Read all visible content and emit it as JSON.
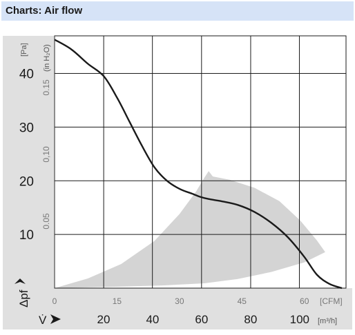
{
  "header": {
    "title": "Charts: Air flow"
  },
  "chart_data": {
    "type": "line",
    "title": "Charts: Air flow",
    "y_symbol": "Δpf",
    "x_symbol": "V̇",
    "y_units": {
      "pa": "[Pa]",
      "inh2o": "(in H₂O)"
    },
    "x_units": {
      "cfm": "[CFM]",
      "m3h": "[m³/h]"
    },
    "xlim_cfm": [
      0,
      70
    ],
    "ylim_pa": [
      0,
      47
    ],
    "grid": true,
    "y_ticks_pa": [
      10,
      20,
      30,
      40
    ],
    "y_ticks_inh2o": [
      "0.05",
      "0,10",
      "0.15"
    ],
    "y_ticks_inh2o_values": [
      0.05,
      0.1,
      0.15
    ],
    "x_ticks_cfm": [
      0,
      15,
      30,
      45,
      60
    ],
    "x_ticks_m3h": [
      20,
      40,
      60,
      80,
      100
    ],
    "grid_x_cfm": [
      11.8,
      23.5,
      35.3,
      47.1,
      58.8,
      70
    ],
    "grid_y_pa": [
      10,
      20,
      30,
      40
    ],
    "series": [
      {
        "x": [
          0,
          4,
          8,
          11.8,
          15,
          18,
          21,
          24,
          27,
          30,
          33,
          35,
          37,
          40,
          44,
          48,
          52,
          56,
          60,
          63,
          66,
          69
        ],
        "y": [
          46.3,
          44.5,
          41.8,
          39.5,
          35.5,
          31,
          26.5,
          22.5,
          20,
          18.5,
          17.6,
          17,
          16.6,
          16.2,
          15.5,
          14.2,
          12.2,
          9.5,
          5.8,
          2.5,
          0.8,
          0
        ]
      }
    ],
    "operating_region": {
      "x": [
        0,
        8,
        16,
        24,
        30,
        34,
        36,
        37,
        38,
        42,
        48,
        54,
        59,
        63,
        65,
        60,
        52,
        44,
        36,
        26,
        16,
        6,
        0
      ],
      "y": [
        0,
        1.8,
        4.5,
        8.8,
        13.8,
        18,
        20.6,
        21.8,
        20.8,
        20.2,
        18.7,
        16.2,
        12.6,
        8.9,
        6.7,
        4.8,
        3,
        1.7,
        0.9,
        0.5,
        0.3,
        0.1,
        0
      ]
    },
    "colors": {
      "curve": "#1a1a1a",
      "region": "#d4d4d4",
      "grid": "#1a1a1a",
      "title_bg": "#d6e3f7",
      "panel": "#e0e0e0"
    }
  }
}
